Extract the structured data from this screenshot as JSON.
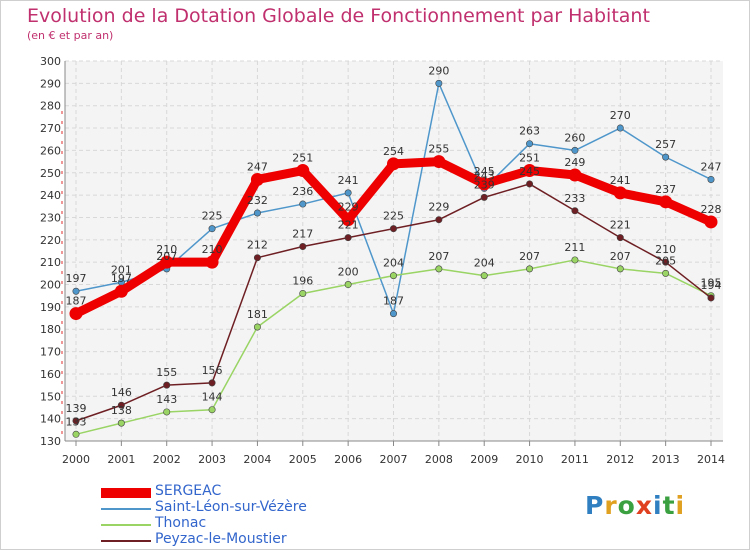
{
  "title": "Evolution de la Dotation Globale de Fonctionnement par Habitant",
  "subtitle": "(en € et par an)",
  "logo": "Proxiti",
  "chart_data": {
    "type": "line",
    "x": [
      "2000",
      "2001",
      "2002",
      "2003",
      "2004",
      "2005",
      "2006",
      "2007",
      "2008",
      "2009",
      "2010",
      "2011",
      "2012",
      "2013",
      "2014"
    ],
    "ylim": [
      130,
      300
    ],
    "yticks": [
      130,
      140,
      150,
      160,
      170,
      180,
      190,
      200,
      210,
      220,
      230,
      240,
      250,
      260,
      270,
      280,
      290,
      300
    ],
    "grid": true,
    "series": [
      {
        "name": "SERGEAC",
        "color": "#ee0000",
        "values": [
          187,
          197,
          210,
          210,
          247,
          251,
          229,
          254,
          255,
          245,
          251,
          249,
          241,
          237,
          228
        ]
      },
      {
        "name": "Saint-Léon-sur-Vézère",
        "color": "#4f97cb",
        "values": [
          197,
          201,
          207,
          225,
          232,
          236,
          241,
          187,
          290,
          243,
          263,
          260,
          270,
          257,
          247
        ]
      },
      {
        "name": "Thonac",
        "color": "#99d464",
        "values": [
          133,
          138,
          143,
          144,
          181,
          196,
          200,
          204,
          207,
          204,
          207,
          211,
          207,
          205,
          195
        ]
      },
      {
        "name": "Peyzac-le-Moustier",
        "color": "#6e1f23",
        "values": [
          139,
          146,
          155,
          156,
          212,
          217,
          221,
          225,
          229,
          239,
          245,
          233,
          221,
          210,
          194
        ]
      }
    ]
  }
}
